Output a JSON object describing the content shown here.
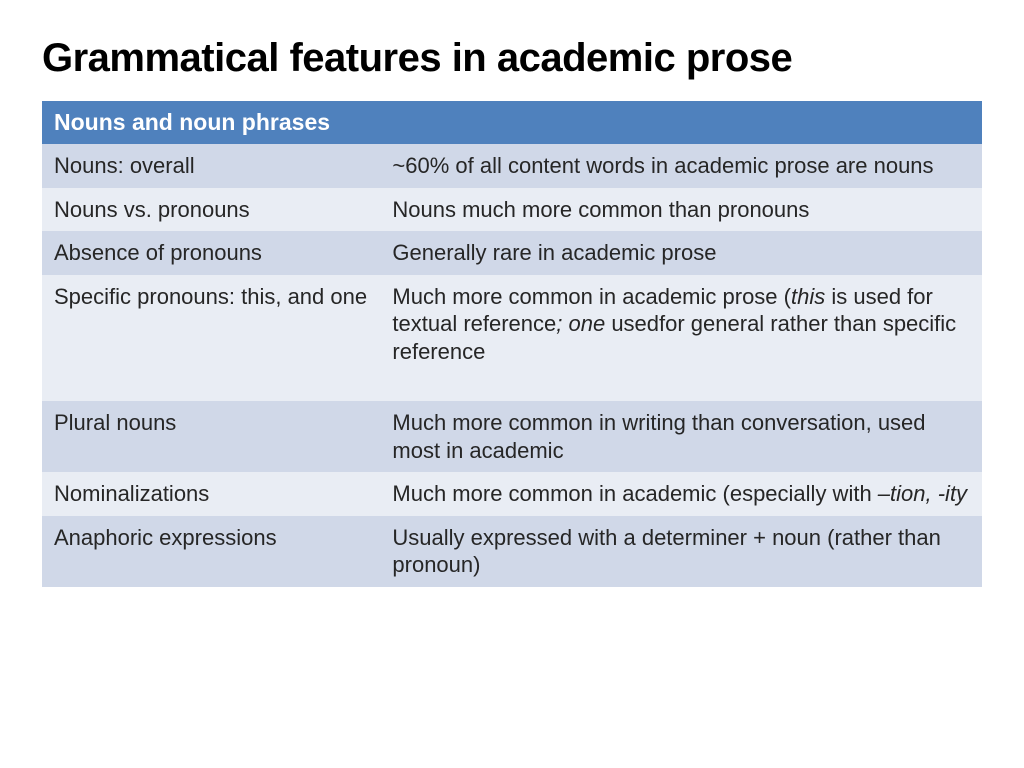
{
  "title": "Grammatical features in academic prose",
  "table": {
    "header_bg": "#4f81bd",
    "header_fg": "#ffffff",
    "row_bg_odd": "#d0d8e8",
    "row_bg_even": "#e9edf4",
    "col_widths_pct": [
      36,
      64
    ],
    "font_size_pt": 22,
    "header_left": "Nouns and noun phrases",
    "header_right": "",
    "rows": [
      {
        "left": "Nouns: overall",
        "right": "~60% of all content words in academic prose are nouns"
      },
      {
        "left": "Nouns vs. pronouns",
        "right": "Nouns much more common than pronouns"
      },
      {
        "left": "Absence of pronouns",
        "right": "Generally rare in academic prose"
      },
      {
        "left": "Specific pronouns: this, and one",
        "right_parts": [
          {
            "text": "Much more common in academic prose (",
            "italic": false
          },
          {
            "text": "this",
            "italic": true
          },
          {
            "text": " is used for textual reference",
            "italic": false
          },
          {
            "text": "; one",
            "italic": true
          },
          {
            "text": " usedfor general rather than specific reference",
            "italic": false
          }
        ],
        "extra_bottom_pad": true
      },
      {
        "left": "Plural nouns",
        "right": "Much more common in writing than conversation, used most in academic"
      },
      {
        "left": "Nominalizations",
        "right_parts": [
          {
            "text": "Much more common in academic (especially with ",
            "italic": false
          },
          {
            "text": "–tion, -ity",
            "italic": true
          }
        ]
      },
      {
        "left": "Anaphoric expressions",
        "right": "Usually expressed with a determiner + noun (rather than pronoun)"
      }
    ]
  }
}
